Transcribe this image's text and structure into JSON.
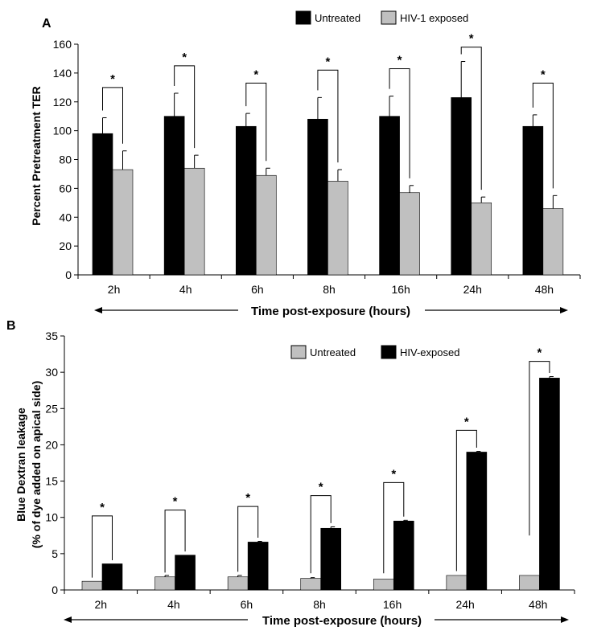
{
  "chart_data": [
    {
      "panel_label": "A",
      "type": "bar",
      "categories": [
        "2h",
        "4h",
        "6h",
        "8h",
        "16h",
        "24h",
        "48h"
      ],
      "series": [
        {
          "name": "Untreated",
          "color": "#000000",
          "values": [
            98,
            110,
            103,
            108,
            110,
            123,
            103
          ],
          "errors": [
            11,
            16,
            9,
            15,
            14,
            25,
            8
          ]
        },
        {
          "name": "HIV-1 exposed",
          "color": "#c0c0c0",
          "values": [
            73,
            74,
            69,
            65,
            57,
            50,
            46
          ],
          "errors": [
            13,
            9,
            5,
            8,
            5,
            4,
            9
          ]
        }
      ],
      "significance": [
        "*",
        "*",
        "*",
        "*",
        "*",
        "*",
        "*"
      ],
      "bracket_tops": [
        130,
        145,
        133,
        142,
        143,
        158,
        133
      ],
      "ylabel": "Percent Pretreatment TER",
      "xlabel": "Time post-exposure (hours)",
      "ylim": [
        0,
        160
      ],
      "yticks": [
        0,
        20,
        40,
        60,
        80,
        100,
        120,
        140,
        160
      ],
      "legend_position": "top-right",
      "grid": false
    },
    {
      "panel_label": "B",
      "type": "bar",
      "categories": [
        "2h",
        "4h",
        "6h",
        "8h",
        "16h",
        "24h",
        "48h"
      ],
      "series": [
        {
          "name": "Untreated",
          "color": "#c0c0c0",
          "values": [
            1.2,
            1.8,
            1.8,
            1.6,
            1.5,
            2.0,
            2.0
          ],
          "errors": [
            0,
            0.2,
            0.2,
            0.1,
            0,
            0,
            0
          ]
        },
        {
          "name": "HIV-exposed",
          "color": "#000000",
          "values": [
            3.6,
            4.8,
            6.6,
            8.5,
            9.5,
            19.0,
            29.2
          ],
          "errors": [
            0,
            0,
            0.1,
            0.2,
            0.1,
            0.1,
            0.2
          ]
        }
      ],
      "significance": [
        "*",
        "*",
        "*",
        "*",
        "*",
        "*",
        "*"
      ],
      "bracket_tops": [
        10.2,
        11.0,
        11.5,
        13.0,
        14.8,
        22.0,
        31.5
      ],
      "bracket_left_low": [
        1.7,
        2.4,
        2.5,
        2.3,
        2.3,
        2.6,
        7.5
      ],
      "ylabel_lines": [
        "Blue Dextran leakage",
        "(% of dye  added  on apical side)"
      ],
      "xlabel": "Time post-exposure (hours)",
      "ylim": [
        0,
        35
      ],
      "yticks": [
        0,
        5,
        10,
        15,
        20,
        25,
        30,
        35
      ],
      "legend_position": "top-right",
      "grid": false
    }
  ]
}
